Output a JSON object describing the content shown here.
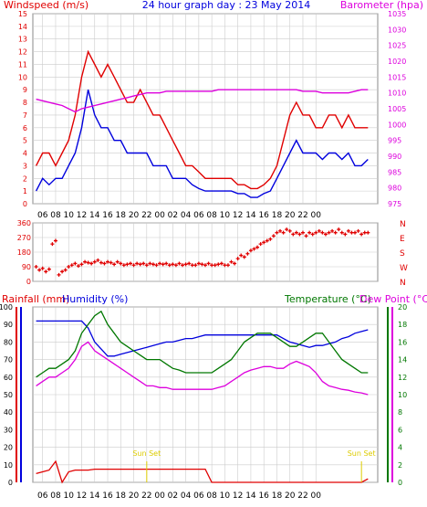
{
  "header": {
    "left": "Windspeed (m/s)",
    "center": "24 hour graph day : 23 May 2014",
    "right": "Barometer (hpa)"
  },
  "colors": {
    "red": "#e00000",
    "blue": "#0000dd",
    "magenta": "#dd00dd",
    "green": "#007700",
    "grid": "#cccccc",
    "frame": "#888888",
    "sunset": "#ddcc00"
  },
  "x_ticks": [
    "06",
    "08",
    "10",
    "12",
    "14",
    "16",
    "18",
    "20",
    "22",
    "00",
    "02",
    "04",
    "06",
    "08",
    "10",
    "12",
    "14",
    "16",
    "18",
    "20",
    "22",
    "00"
  ],
  "chart_data": [
    {
      "type": "line",
      "name": "wind-and-barometer",
      "ylim_left": [
        0,
        15
      ],
      "ylim_right": [
        975,
        1035
      ],
      "y_ticks_left": [
        "0",
        "1",
        "2",
        "3",
        "4",
        "5",
        "6",
        "7",
        "8",
        "9",
        "10",
        "11",
        "12",
        "13",
        "14",
        "15"
      ],
      "y_ticks_right": [
        "975",
        "980",
        "985",
        "990",
        "995",
        "1000",
        "1005",
        "1010",
        "1015",
        "1020",
        "1025",
        "1030",
        "1035"
      ],
      "x_hours": [
        5,
        6,
        7,
        8,
        9,
        10,
        11,
        12,
        13,
        14,
        15,
        16,
        17,
        18,
        19,
        20,
        21,
        22,
        23,
        24,
        25,
        26,
        27,
        28,
        29,
        30,
        31,
        32,
        33,
        34,
        35,
        36,
        37,
        38,
        39,
        40,
        41,
        42,
        43,
        44,
        45,
        46,
        47,
        48,
        49,
        50,
        51,
        52,
        53,
        54,
        55,
        56
      ],
      "series": [
        {
          "name": "gust",
          "axis": "left",
          "values": [
            3,
            4,
            4,
            3,
            4,
            5,
            7,
            10,
            12,
            11,
            10,
            11,
            10,
            9,
            8,
            8,
            9,
            8,
            7,
            7,
            6,
            5,
            4,
            3,
            3,
            2.5,
            2,
            2,
            2,
            2,
            2,
            1.5,
            1.5,
            1.2,
            1.2,
            1.5,
            2,
            3,
            5,
            7,
            8,
            7,
            7,
            6,
            6,
            7,
            7,
            6,
            7,
            6,
            6,
            6
          ]
        },
        {
          "name": "speed",
          "axis": "left",
          "values": [
            1,
            2,
            1.5,
            2,
            2,
            3,
            4,
            6,
            9,
            7,
            6,
            6,
            5,
            5,
            4,
            4,
            4,
            4,
            3,
            3,
            3,
            2,
            2,
            2,
            1.5,
            1.2,
            1,
            1,
            1,
            1,
            1,
            0.8,
            0.8,
            0.5,
            0.5,
            0.8,
            1,
            2,
            3,
            4,
            5,
            4,
            4,
            4,
            3.5,
            4,
            4,
            3.5,
            4,
            3,
            3,
            3.5
          ]
        },
        {
          "name": "barometer",
          "axis": "right",
          "values": [
            1008,
            1007.5,
            1007,
            1006.5,
            1006,
            1005,
            1004,
            1005,
            1005.5,
            1006,
            1006.5,
            1007,
            1007.5,
            1008,
            1008.5,
            1009,
            1009.5,
            1010,
            1010,
            1010,
            1010.5,
            1010.5,
            1010.5,
            1010.5,
            1010.5,
            1010.5,
            1010.5,
            1010.5,
            1011,
            1011,
            1011,
            1011,
            1011,
            1011,
            1011,
            1011,
            1011,
            1011,
            1011,
            1011,
            1011,
            1010.5,
            1010.5,
            1010.5,
            1010,
            1010,
            1010,
            1010,
            1010,
            1010.5,
            1011,
            1011
          ]
        }
      ]
    },
    {
      "type": "scatter",
      "name": "wind-direction",
      "ylim": [
        0,
        360
      ],
      "y_ticks": [
        "0",
        "90",
        "180",
        "270",
        "360"
      ],
      "compass": [
        "N",
        "W",
        "S",
        "E",
        "N"
      ],
      "x_hours": [
        5,
        5.5,
        6,
        6.5,
        7,
        7.5,
        8,
        8.5,
        9,
        9.5,
        10,
        10.5,
        11,
        11.5,
        12,
        12.5,
        13,
        13.5,
        14,
        14.5,
        15,
        15.5,
        16,
        16.5,
        17,
        17.5,
        18,
        18.5,
        19,
        19.5,
        20,
        20.5,
        21,
        21.5,
        22,
        22.5,
        23,
        23.5,
        24,
        24.5,
        25,
        25.5,
        26,
        26.5,
        27,
        27.5,
        28,
        28.5,
        29,
        29.5,
        30,
        30.5,
        31,
        31.5,
        32,
        32.5,
        33,
        33.5,
        34,
        34.5,
        35,
        35.5,
        36,
        36.5,
        37,
        37.5,
        38,
        38.5,
        39,
        39.5,
        40,
        40.5,
        41,
        41.5,
        42,
        42.5,
        43,
        43.5,
        44,
        44.5,
        45,
        45.5,
        46,
        46.5,
        47,
        47.5,
        48,
        48.5,
        49,
        49.5,
        50,
        50.5,
        51,
        51.5,
        52,
        52.5,
        53,
        53.5,
        54,
        54.5,
        55,
        55.5,
        56
      ],
      "values": [
        90,
        70,
        80,
        60,
        75,
        230,
        250,
        40,
        60,
        70,
        90,
        100,
        110,
        95,
        105,
        120,
        115,
        110,
        120,
        130,
        115,
        110,
        120,
        115,
        105,
        120,
        110,
        100,
        105,
        110,
        100,
        110,
        105,
        110,
        100,
        110,
        105,
        100,
        110,
        105,
        110,
        100,
        105,
        100,
        110,
        100,
        105,
        110,
        100,
        100,
        110,
        105,
        100,
        110,
        100,
        100,
        105,
        110,
        100,
        100,
        120,
        110,
        140,
        160,
        150,
        170,
        190,
        200,
        210,
        230,
        240,
        250,
        260,
        280,
        300,
        310,
        300,
        320,
        310,
        290,
        300,
        290,
        300,
        280,
        300,
        290,
        300,
        310,
        300,
        290,
        300,
        310,
        300,
        320,
        300,
        290,
        310,
        300,
        300,
        310,
        290,
        300,
        300
      ]
    },
    {
      "type": "line",
      "name": "rain-humidity-temperature-dewpoint",
      "header_left": [
        "Rainfall (mm)",
        "Humidity (%)"
      ],
      "header_right": [
        "Temperature (°C)",
        "Dew Point (°C)"
      ],
      "ylim_left": [
        0,
        100
      ],
      "ylim_right": [
        0,
        20
      ],
      "y_ticks_left": [
        "0",
        "10",
        "20",
        "30",
        "40",
        "50",
        "60",
        "70",
        "80",
        "90",
        "100"
      ],
      "y_ticks_right": [
        "0",
        "2",
        "4",
        "6",
        "8",
        "10",
        "12",
        "14",
        "16",
        "18",
        "20"
      ],
      "x_hours": [
        5,
        6,
        7,
        8,
        9,
        10,
        11,
        12,
        13,
        14,
        15,
        16,
        17,
        18,
        19,
        20,
        21,
        22,
        23,
        24,
        25,
        26,
        27,
        28,
        29,
        30,
        31,
        32,
        33,
        34,
        35,
        36,
        37,
        38,
        39,
        40,
        41,
        42,
        43,
        44,
        45,
        46,
        47,
        48,
        49,
        50,
        51,
        52,
        53,
        54,
        55,
        56
      ],
      "annotations": [
        {
          "label": "Sun Set",
          "x_hour": 22
        },
        {
          "label": "Sun Set",
          "x_hour": 55
        }
      ],
      "series": [
        {
          "name": "humidity",
          "axis": "left",
          "values": [
            92,
            92,
            92,
            92,
            92,
            92,
            92,
            92,
            88,
            80,
            76,
            72,
            72,
            73,
            74,
            75,
            76,
            77,
            78,
            79,
            80,
            80,
            81,
            82,
            82,
            83,
            84,
            84,
            84,
            84,
            84,
            84,
            84,
            84,
            84,
            84,
            84,
            84,
            82,
            80,
            79,
            78,
            77,
            78,
            78,
            79,
            80,
            82,
            83,
            85,
            86,
            87
          ]
        },
        {
          "name": "temperature",
          "axis": "right",
          "values": [
            12,
            12.5,
            13,
            13,
            13.5,
            14,
            15,
            17,
            18,
            19,
            19.5,
            18,
            17,
            16,
            15.5,
            15,
            14.5,
            14,
            14,
            14,
            13.5,
            13,
            12.8,
            12.5,
            12.5,
            12.5,
            12.5,
            12.5,
            13,
            13.5,
            14,
            15,
            16,
            16.5,
            17,
            17,
            17,
            16.5,
            16,
            15.5,
            15.5,
            16,
            16.5,
            17,
            17,
            16,
            15,
            14,
            13.5,
            13,
            12.5,
            12.5
          ]
        },
        {
          "name": "dew_point",
          "axis": "right",
          "values": [
            11,
            11.5,
            12,
            12,
            12.5,
            13,
            14,
            15.5,
            16,
            15,
            14.5,
            14,
            13.5,
            13,
            12.5,
            12,
            11.5,
            11,
            11,
            10.8,
            10.8,
            10.6,
            10.6,
            10.6,
            10.6,
            10.6,
            10.6,
            10.6,
            10.8,
            11,
            11.5,
            12,
            12.5,
            12.8,
            13,
            13.2,
            13.2,
            13,
            13,
            13.5,
            13.8,
            13.5,
            13.2,
            12.5,
            11.5,
            11,
            10.8,
            10.6,
            10.5,
            10.3,
            10.2,
            10
          ]
        },
        {
          "name": "rain_rate",
          "axis": "left",
          "values": [
            5,
            6,
            7,
            12,
            0,
            6,
            7,
            7,
            7,
            7.5,
            7.5,
            7.5,
            7.5,
            7.5,
            7.5,
            7.5,
            7.5,
            7.5,
            7.5,
            7.5,
            7.5,
            7.5,
            7.5,
            7.5,
            7.5,
            7.5,
            7.5,
            0,
            0,
            0,
            0,
            0,
            0,
            0,
            0,
            0,
            0,
            0,
            0,
            0,
            0,
            0,
            0,
            0,
            0,
            0,
            0,
            0,
            0,
            0,
            0,
            2
          ]
        }
      ]
    }
  ]
}
